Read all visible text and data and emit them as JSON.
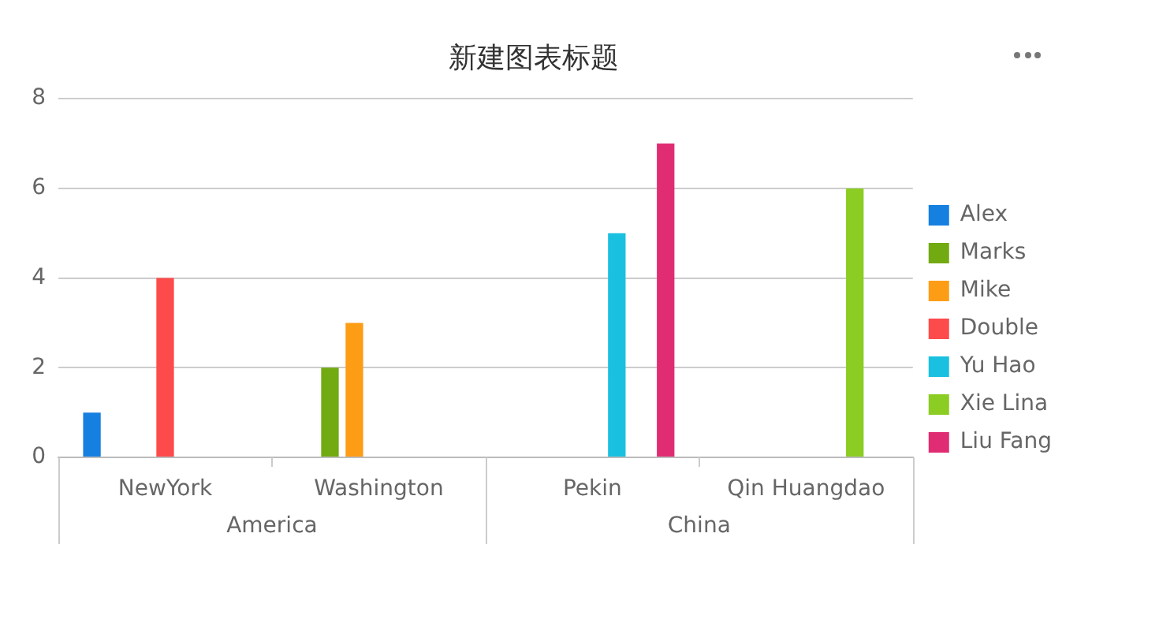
{
  "chart_data": {
    "type": "bar",
    "title": "新建图表标题",
    "categories": [
      "NewYork",
      "Washington",
      "Pekin",
      "Qin Huangdao"
    ],
    "series": [
      {
        "name": "Alex",
        "color": "#1580e0",
        "values": [
          1,
          null,
          null,
          null
        ]
      },
      {
        "name": "Marks",
        "color": "#72aa12",
        "values": [
          null,
          2,
          null,
          null
        ]
      },
      {
        "name": "Mike",
        "color": "#fd9d16",
        "values": [
          null,
          3,
          null,
          null
        ]
      },
      {
        "name": "Double",
        "color": "#fd4a4a",
        "values": [
          4,
          null,
          null,
          null
        ]
      },
      {
        "name": "Yu Hao",
        "color": "#1ac0e0",
        "values": [
          null,
          null,
          5,
          null
        ]
      },
      {
        "name": "Xie Lina",
        "color": "#8bcd22",
        "values": [
          null,
          null,
          null,
          6
        ]
      },
      {
        "name": "Liu Fang",
        "color": "#e02c72",
        "values": [
          null,
          null,
          7,
          null
        ]
      }
    ],
    "ylim": [
      0,
      8
    ],
    "yticks": [
      0,
      2,
      4,
      6,
      8
    ],
    "grid": "y",
    "legend": "right",
    "annotations": [
      "America",
      "China"
    ]
  }
}
